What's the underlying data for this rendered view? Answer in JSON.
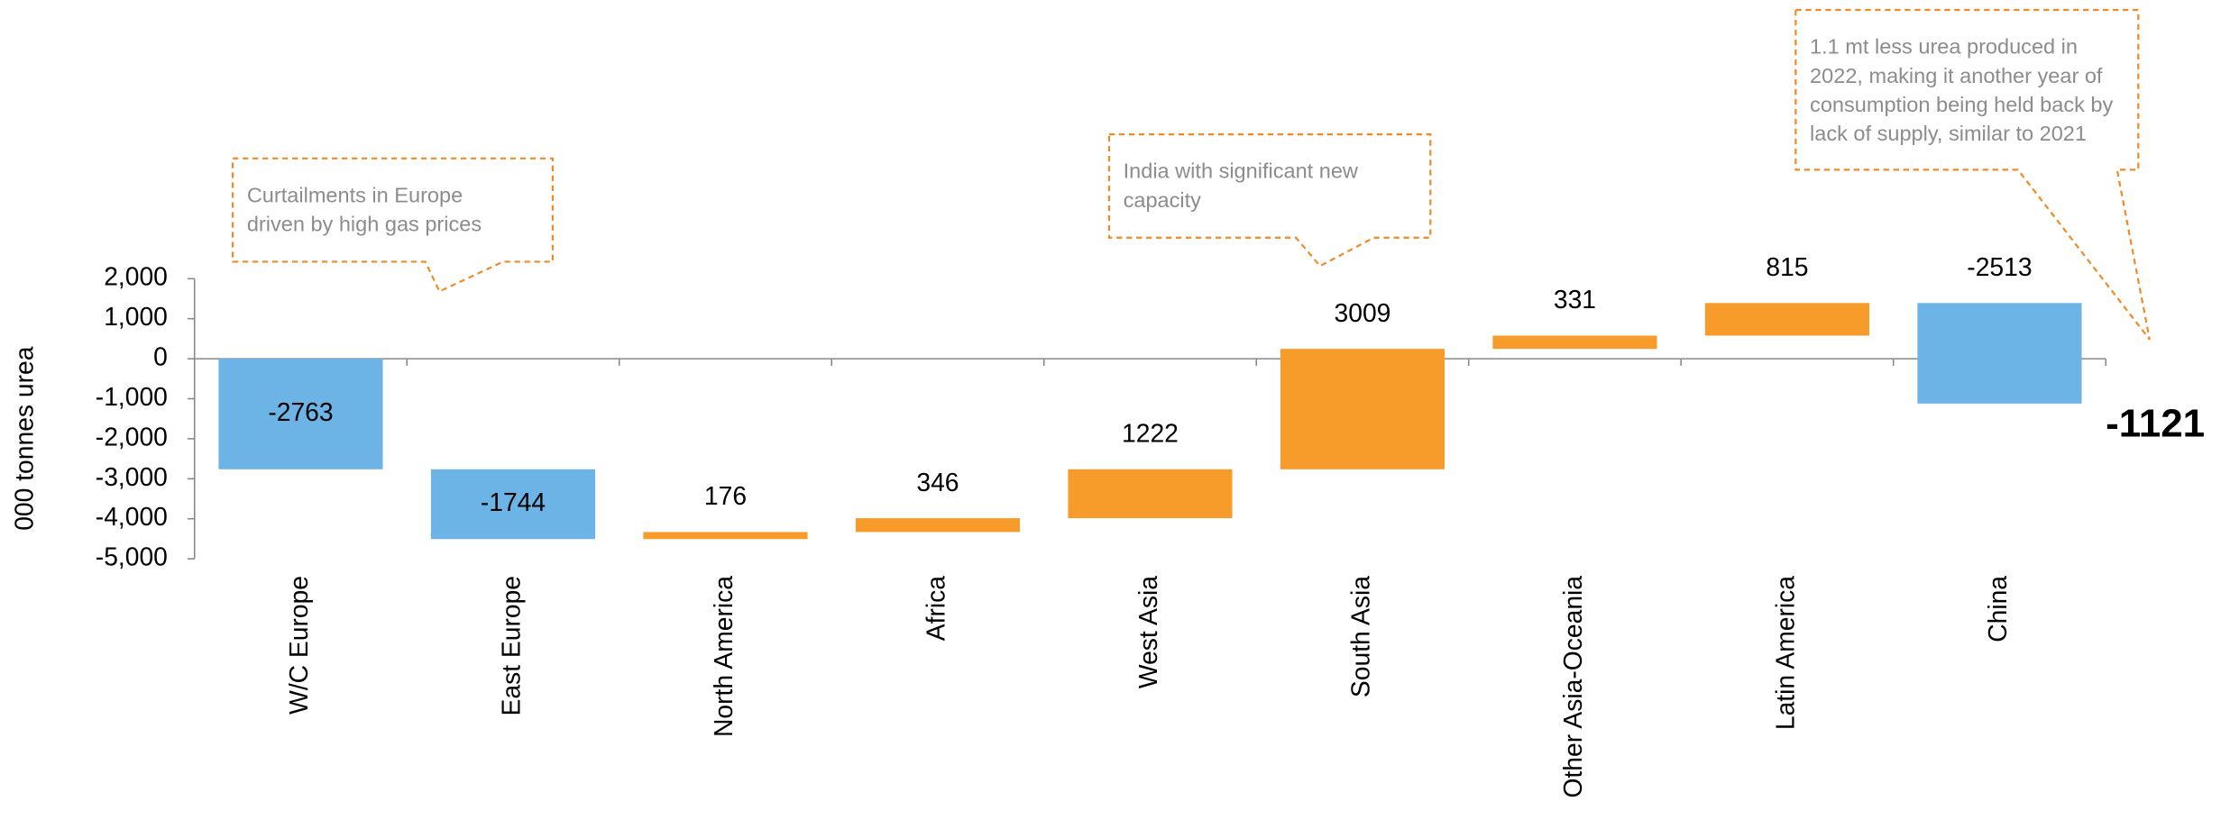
{
  "chart_data": {
    "type": "waterfall",
    "y_label": "000 tonnes urea",
    "categories": [
      "W/C Europe",
      "East Europe",
      "North America",
      "Africa",
      "West Asia",
      "South Asia",
      "Other Asia-Oceania",
      "Latin America",
      "China"
    ],
    "values": [
      -2763,
      -1744,
      176,
      346,
      1222,
      3009,
      331,
      815,
      -2513
    ],
    "positive_color": "#f79c2a",
    "negative_color": "#6cb4e6",
    "total": -1121,
    "ylim": [
      -5000,
      2000
    ],
    "yticks": [
      {
        "value": -5000,
        "label": "-5,000"
      },
      {
        "value": -4000,
        "label": "-4,000"
      },
      {
        "value": -3000,
        "label": "-3,000"
      },
      {
        "value": -2000,
        "label": "-2,000"
      },
      {
        "value": -1000,
        "label": "-1,000"
      },
      0,
      {
        "value": 1000,
        "label": "1,000"
      },
      {
        "value": 2000,
        "label": "2,000"
      }
    ],
    "annotations": [
      {
        "lines": [
          "Curtailments in Europe",
          "driven by high gas prices"
        ]
      },
      {
        "lines": [
          "India with significant new",
          "capacity"
        ]
      },
      {
        "lines": [
          "1.1 mt less urea produced in",
          "2022, making it another year of",
          "consumption being held back by",
          "lack of supply, similar to 2021"
        ]
      }
    ]
  }
}
